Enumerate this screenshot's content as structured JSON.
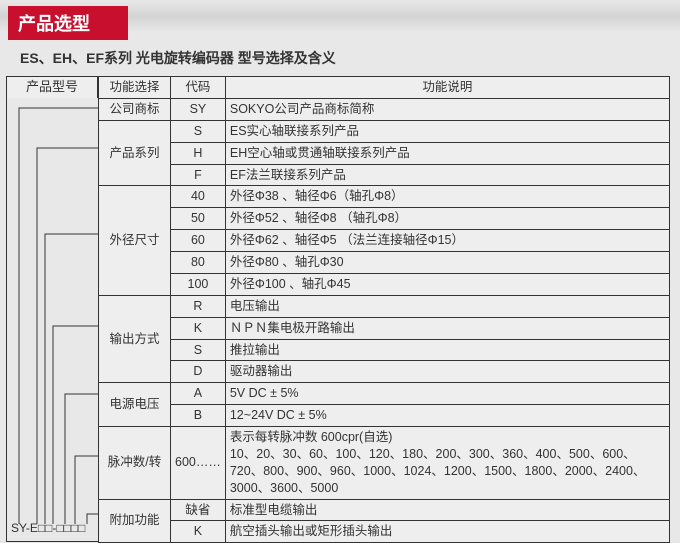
{
  "header": "产品选型",
  "subtitle": "ES、EH、EF系列 光电旋转编码器 型号选择及含义",
  "left_label": "产品型号",
  "model_string": "SY-E□□-□□□□",
  "table": {
    "head": {
      "fn": "功能选择",
      "code": "代码",
      "desc": "功能说明"
    },
    "groups": [
      {
        "fn": "公司商标",
        "rows": [
          {
            "code": "SY",
            "desc": "SOKYO公司产品商标简称"
          }
        ]
      },
      {
        "fn": "产品系列",
        "rows": [
          {
            "code": "S",
            "desc": "ES实心轴联接系列产品"
          },
          {
            "code": "H",
            "desc": "EH空心轴或贯通轴联接系列产品"
          },
          {
            "code": "F",
            "desc": "EF法兰联接系列产品"
          }
        ]
      },
      {
        "fn": "外径尺寸",
        "rows": [
          {
            "code": "40",
            "desc": "外径Φ38 、轴径Φ6（轴孔Φ8）"
          },
          {
            "code": "50",
            "desc": "外径Φ52 、轴径Φ8 （轴孔Φ8）"
          },
          {
            "code": "60",
            "desc": "外径Φ62 、轴径Φ5 （法兰连接轴径Φ15）"
          },
          {
            "code": "80",
            "desc": "外径Φ80 、轴孔Φ30"
          },
          {
            "code": "100",
            "desc": "外径Φ100 、轴孔Φ45"
          }
        ]
      },
      {
        "fn": "输出方式",
        "rows": [
          {
            "code": "R",
            "desc": "电压输出"
          },
          {
            "code": "K",
            "desc": "ＮＰＮ集电极开路输出"
          },
          {
            "code": "S",
            "desc": "推拉输出"
          },
          {
            "code": "D",
            "desc": "驱动器输出"
          }
        ]
      },
      {
        "fn": "电源电压",
        "rows": [
          {
            "code": "A",
            "desc": "5V  DC ± 5%"
          },
          {
            "code": "B",
            "desc": "12~24V  DC ± 5%"
          }
        ]
      },
      {
        "fn": "脉冲数/转",
        "rows": [
          {
            "code": "600……",
            "desc": "表示每转脉冲数 600cpr(自选)\n10、20、30、60、100、120、180、200、300、360、400、500、600、720、800、900、960、1000、1024、1200、1500、1800、2000、2400、3000、3600、5000"
          }
        ]
      },
      {
        "fn": "附加功能",
        "rows": [
          {
            "code": "缺省",
            "desc": "标准型电缆输出"
          },
          {
            "code": "K",
            "desc": "航空插头输出或矩形插头输出"
          }
        ]
      }
    ]
  }
}
